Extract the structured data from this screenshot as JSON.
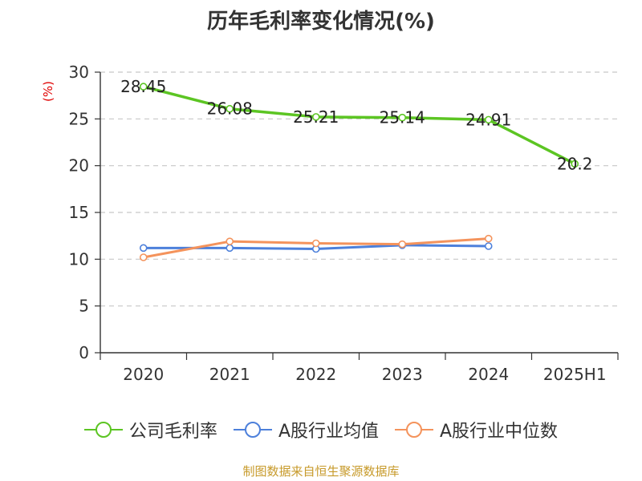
{
  "page": {
    "title": "历年毛利率变化情况(%)",
    "source": "制图数据来自恒生聚源数据库"
  },
  "chart_data": {
    "type": "line",
    "title": "历年毛利率变化情况(%)",
    "ylabel": "(%)",
    "xlabel": "",
    "categories": [
      "2020",
      "2021",
      "2022",
      "2023",
      "2024",
      "2025H1"
    ],
    "ylim": [
      0,
      30
    ],
    "yticks": [
      0,
      5,
      10,
      15,
      20,
      25,
      30
    ],
    "grid": true,
    "legend": "bottom",
    "series": [
      {
        "name": "公司毛利率",
        "color": "#5cc523",
        "values": [
          28.45,
          26.08,
          25.21,
          25.14,
          24.91,
          20.2
        ],
        "labels": [
          "28.45",
          "26.08",
          "25.21",
          "25.14",
          "24.91",
          "20.2"
        ]
      },
      {
        "name": "A股行业均值",
        "color": "#4d80db",
        "values": [
          11.2,
          11.2,
          11.1,
          11.5,
          11.4,
          null
        ]
      },
      {
        "name": "A股行业中位数",
        "color": "#f4935c",
        "values": [
          10.2,
          11.9,
          11.7,
          11.6,
          12.2,
          null
        ]
      }
    ]
  }
}
